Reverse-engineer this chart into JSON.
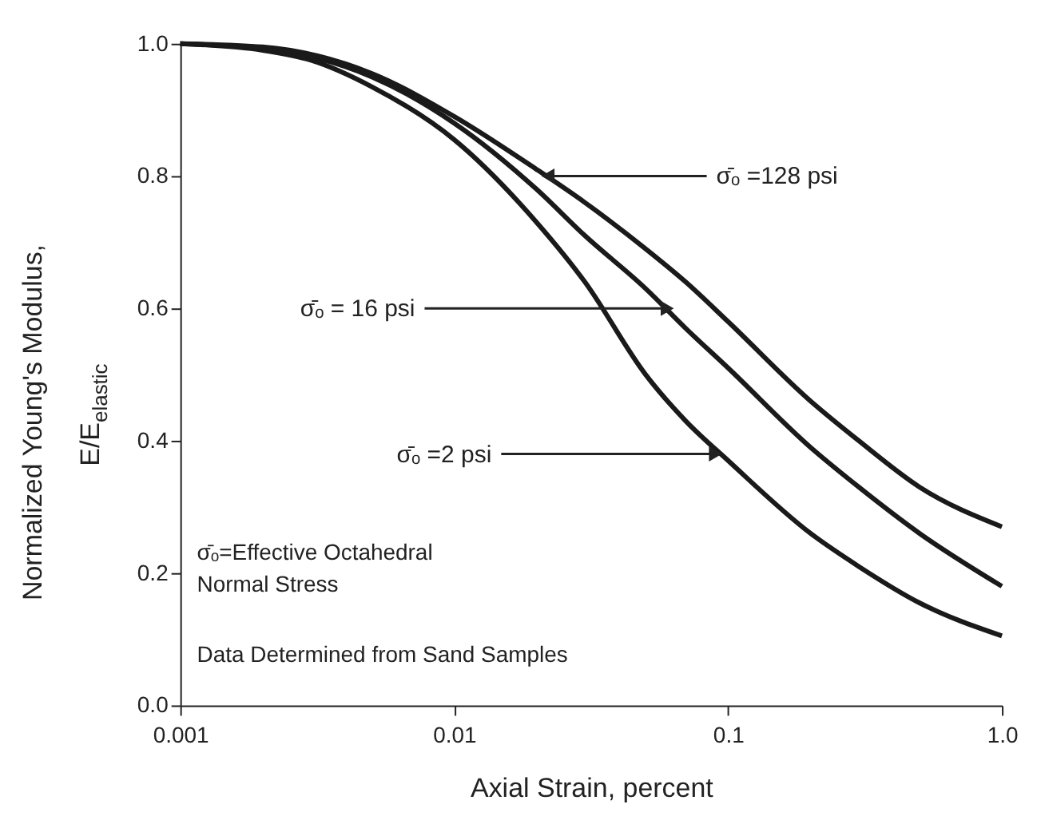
{
  "chart_data": {
    "type": "line",
    "xlabel": "Axial Strain, percent",
    "ylabel": "Normalized Young's Modulus, E/E$_{elastic}$",
    "log": "x",
    "xlim": [
      0.001,
      1.0
    ],
    "xticks": [
      0.001,
      0.01,
      0.1,
      {
        "value": 1.0,
        "label": "1.0"
      }
    ],
    "ylim": [
      0.0,
      1.0
    ],
    "yticks": [
      {
        "value": 0.0,
        "label": "0.0"
      },
      0.2,
      0.4,
      0.6,
      0.8,
      {
        "value": 1.0,
        "label": "1.0"
      }
    ],
    "grid": false,
    "marker": "none",
    "line_style": "solid",
    "series": [
      {
        "color": "#1a1a1a",
        "x": [
          0.001,
          0.002,
          0.003,
          0.005,
          0.01,
          0.02,
          0.03,
          0.05,
          0.07,
          0.1,
          0.2,
          0.3,
          0.5,
          1.0
        ],
        "values": [
          1.0,
          0.99,
          0.975,
          0.935,
          0.855,
          0.73,
          0.64,
          0.5,
          0.43,
          0.37,
          0.26,
          0.21,
          0.155,
          0.105
        ]
      },
      {
        "color": "#1a1a1a",
        "x": [
          0.001,
          0.002,
          0.005,
          0.01,
          0.02,
          0.03,
          0.05,
          0.07,
          0.1,
          0.2,
          0.3,
          0.5,
          1.0
        ],
        "values": [
          1.0,
          0.993,
          0.95,
          0.88,
          0.78,
          0.71,
          0.63,
          0.57,
          0.51,
          0.39,
          0.33,
          0.26,
          0.18
        ]
      },
      {
        "color": "#1a1a1a",
        "x": [
          0.001,
          0.002,
          0.005,
          0.01,
          0.02,
          0.03,
          0.05,
          0.07,
          0.1,
          0.2,
          0.3,
          0.5,
          1.0
        ],
        "values": [
          1.0,
          0.995,
          0.955,
          0.89,
          0.81,
          0.76,
          0.69,
          0.64,
          0.58,
          0.46,
          0.4,
          0.33,
          0.27
        ]
      }
    ],
    "annotations": [
      {
        "text": "σ̄ₒ =128 psi",
        "x": 0.022,
        "y": 0.8
      },
      {
        "text": "σ̄ₒ = 16 psi",
        "x": 0.06,
        "y": 0.6
      },
      {
        "text": "σ̄ₒ =2 psi",
        "x": 0.09,
        "y": 0.38
      },
      "σ̄ₒ=Effective Octahedral Normal Stress",
      "Data Determined from Sand Samples"
    ]
  }
}
